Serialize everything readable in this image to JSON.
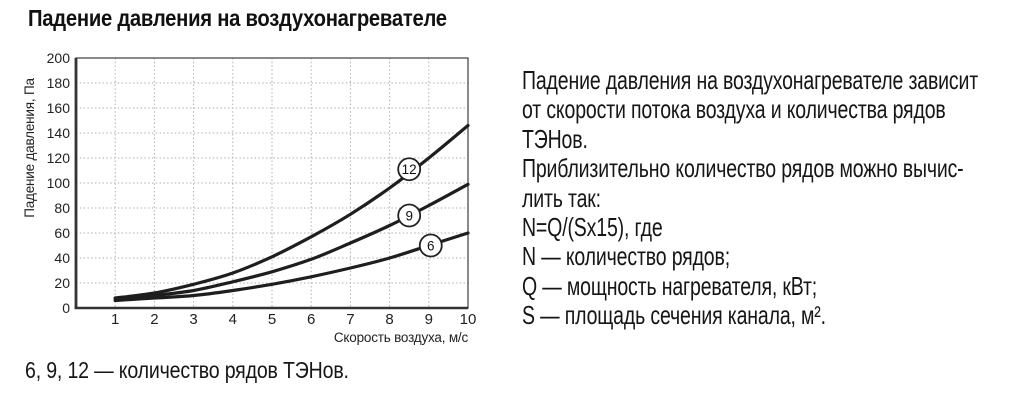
{
  "page": {
    "title": "Падение давления на воздухонагревателе",
    "caption": "6, 9, 12 — количество рядов ТЭНов."
  },
  "description": {
    "lines": [
      "Падение давления на воздухонагревателе зависит",
      "от скорости потока воздуха и количества рядов",
      "ТЭНов.",
      "Приблизительно количество рядов можно вычис-",
      "лить так:",
      "N=Q/(Sx15), где",
      "N — количество рядов;",
      "Q — мощность нагревателя, кВт;",
      "S — площадь сечения канала, м²."
    ]
  },
  "chart_data": {
    "type": "line",
    "title": "Падение давления на воздухонагревателе",
    "xlabel": "Скорость воздуха, м/с",
    "ylabel": "Падение давления, Па",
    "xlim": [
      0,
      10
    ],
    "ylim": [
      0,
      200
    ],
    "xticks": [
      1,
      2,
      3,
      4,
      5,
      6,
      7,
      8,
      9,
      10
    ],
    "yticks": [
      0,
      20,
      40,
      60,
      80,
      100,
      120,
      140,
      160,
      180,
      200
    ],
    "grid": "dotted",
    "x": [
      1,
      2,
      3,
      4,
      5,
      6,
      7,
      8,
      9,
      10
    ],
    "series": [
      {
        "name": "12",
        "values": [
          8,
          12,
          19,
          28,
          41,
          57,
          75,
          96,
          120,
          146
        ],
        "label_at": {
          "x": 8.5,
          "y": 111
        }
      },
      {
        "name": "9",
        "values": [
          7,
          10,
          14,
          21,
          29,
          39,
          52,
          66,
          82,
          99
        ],
        "label_at": {
          "x": 8.5,
          "y": 74
        }
      },
      {
        "name": "6",
        "values": [
          6,
          8,
          10,
          14,
          19,
          25,
          32,
          40,
          50,
          60
        ],
        "label_at": {
          "x": 9.05,
          "y": 50
        }
      }
    ],
    "colors": {
      "curve": "#1e1e1e",
      "grid": "#ababab",
      "axis": "#333333",
      "text": "#222222"
    }
  }
}
